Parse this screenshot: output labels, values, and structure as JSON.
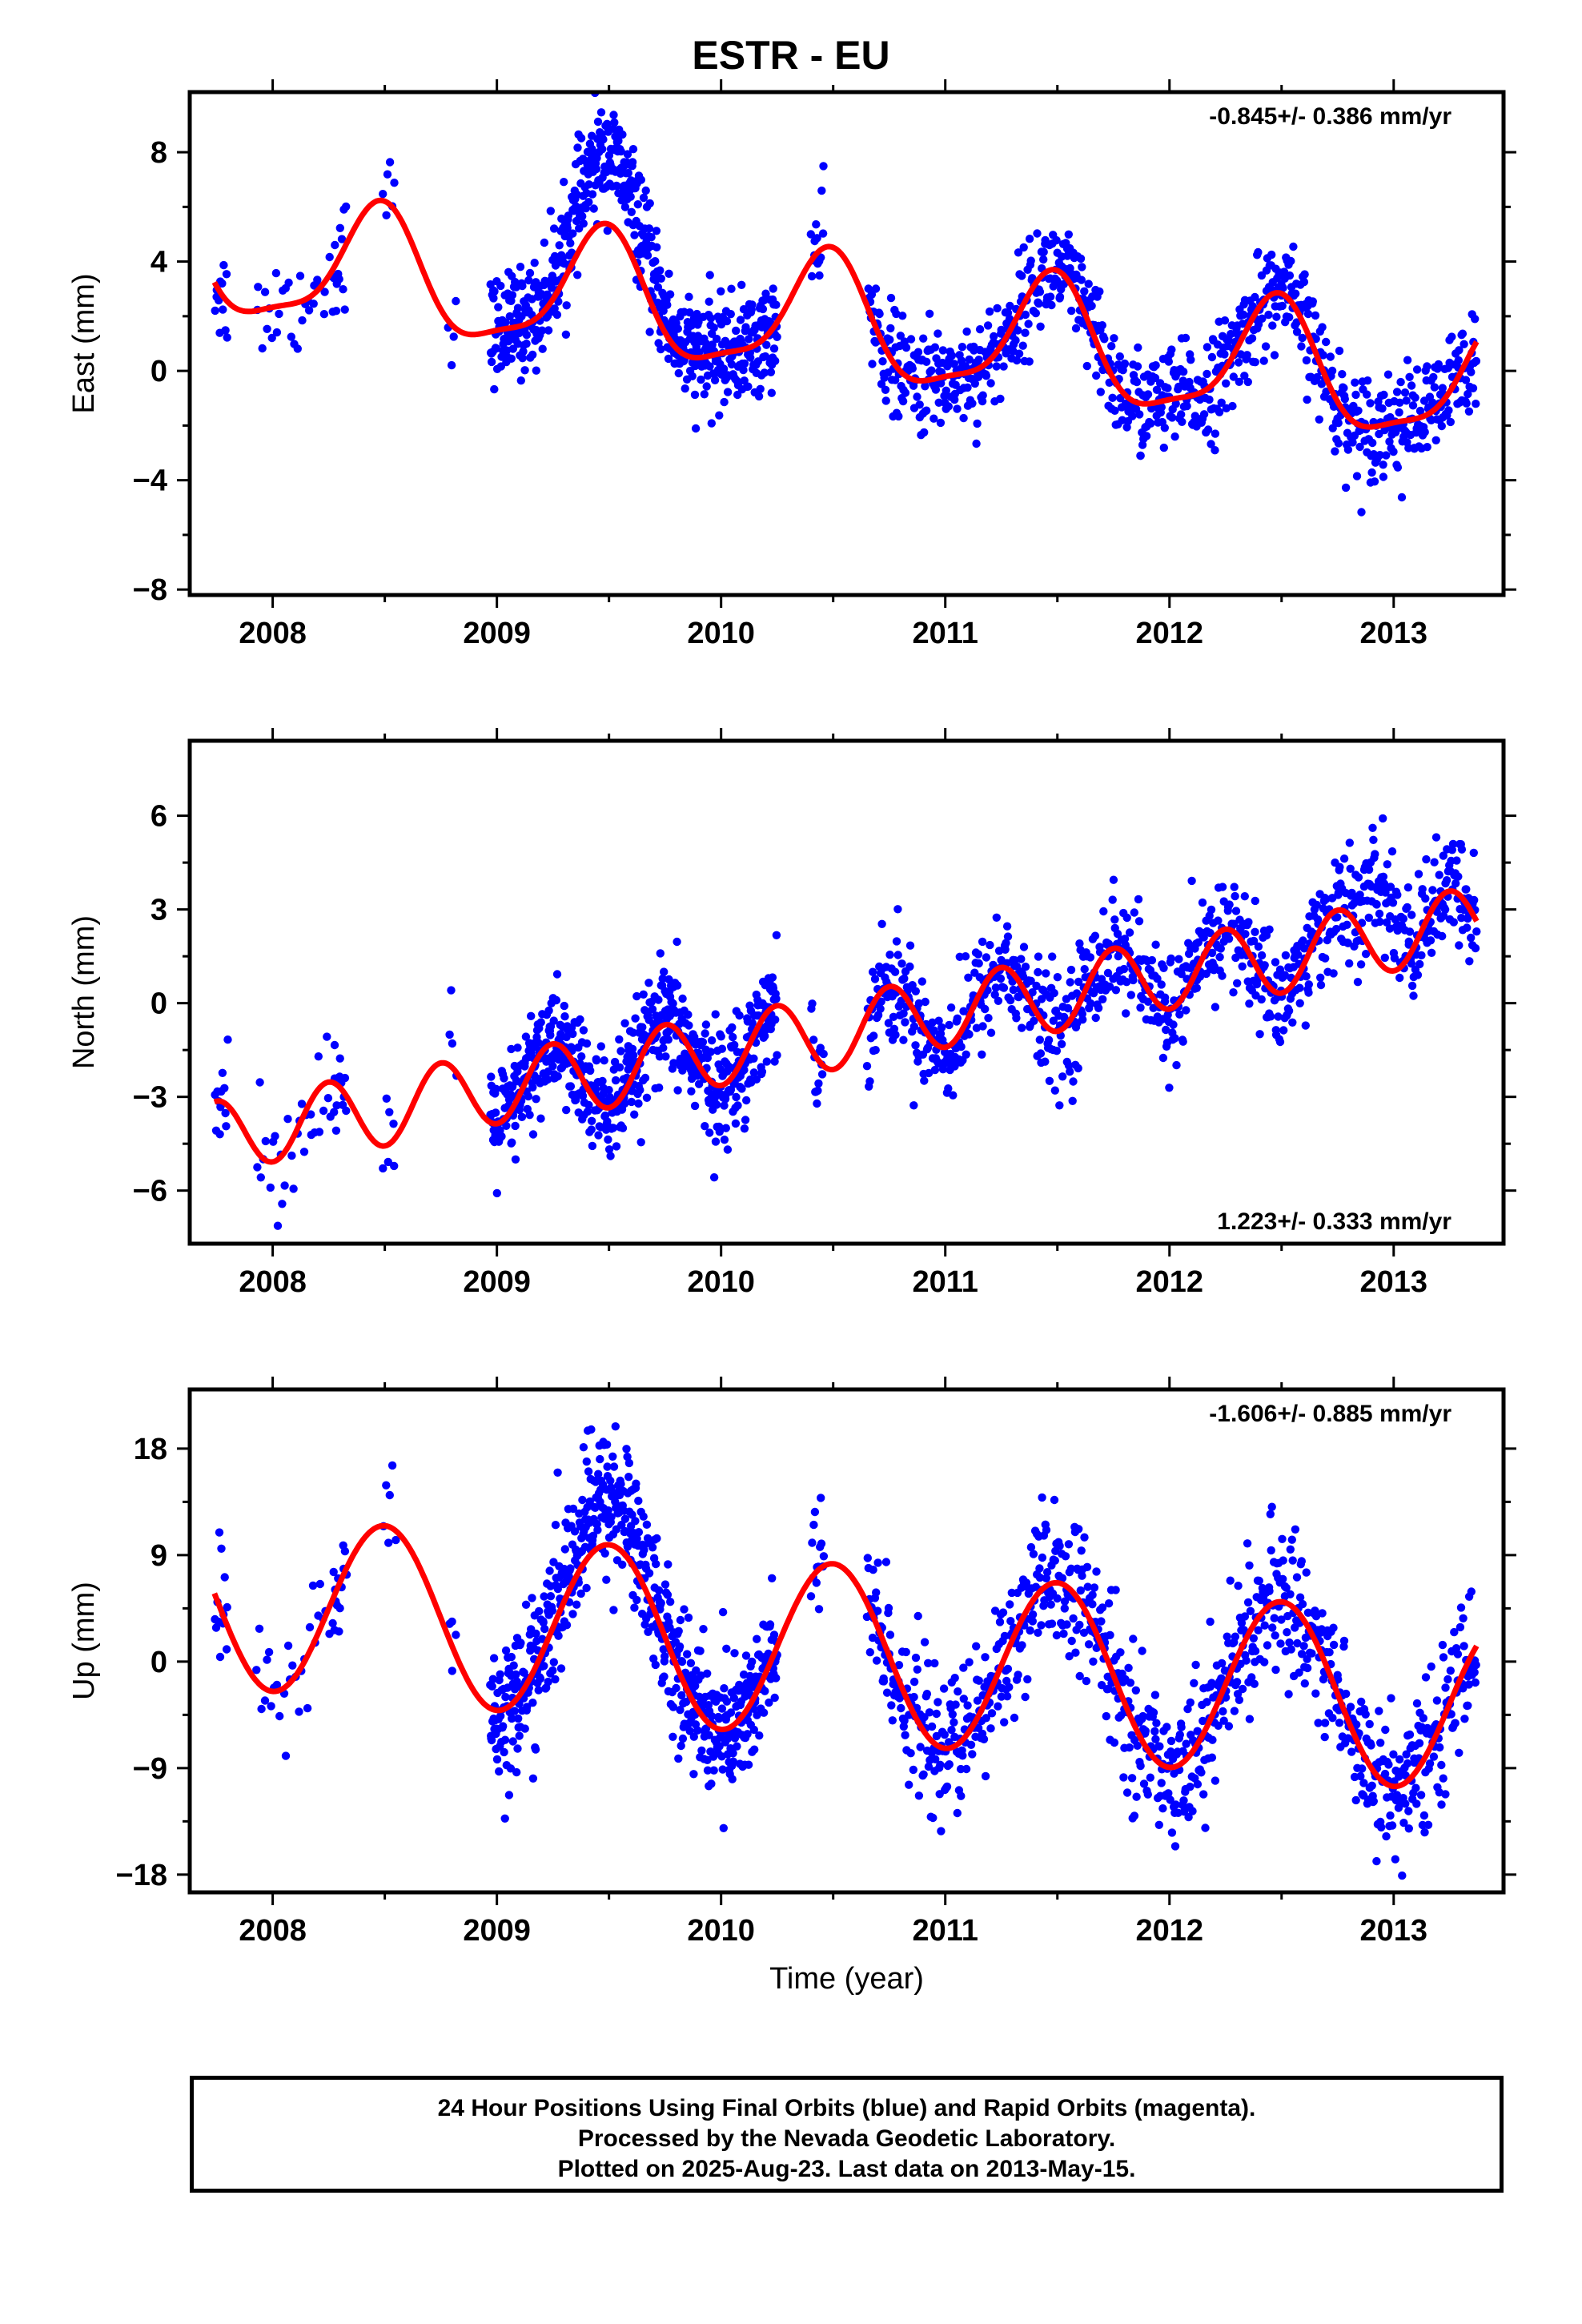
{
  "title": "ESTR - EU",
  "footer": {
    "line1": "24 Hour Positions Using Final Orbits (blue) and Rapid Orbits (magenta).",
    "line2": "Processed by the Nevada Geodetic Laboratory.",
    "line3": "Plotted on 2025-Aug-23. Last data on 2013-May-15."
  },
  "colors": {
    "points": "#0000ff",
    "fit": "#ff0000",
    "frame": "#000000"
  },
  "chart_data": [
    {
      "type": "scatter",
      "name": "east",
      "ylabel": "East (mm)",
      "xlabel": "",
      "rate_label": "-0.845+/- 0.386 mm/yr",
      "rate_placement": "top-right",
      "xlim": [
        2007.63,
        2013.49
      ],
      "ylim": [
        -8.2,
        10.2
      ],
      "xticks": [
        "2008",
        "2009",
        "2010",
        "2011",
        "2012",
        "2013"
      ],
      "yticks": [
        "8",
        "4",
        "0",
        "−4",
        "−8"
      ],
      "ytick_values": [
        8,
        4,
        0,
        -4,
        -8
      ],
      "data_range": [
        2007.74,
        2013.37
      ],
      "fit": {
        "offset": 4.1,
        "rate": -0.845,
        "annual_sin": 0.4,
        "annual_cos": -2.15,
        "semiannual_sin": 0.0,
        "semiannual_cos": 0.6
      },
      "anomaly": {
        "center": 2009.5,
        "width": 0.22,
        "amplitude": 2.5
      },
      "scatter_sigma": 0.95,
      "segments": [
        {
          "x": [
            2007.74,
            2007.8
          ],
          "n": 12
        },
        {
          "x": [
            2007.92,
            2008.28
          ],
          "n": 30
        },
        {
          "x": [
            2008.27,
            2008.33
          ],
          "n": 12
        },
        {
          "x": [
            2008.49,
            2008.55
          ],
          "n": 6
        },
        {
          "x": [
            2008.78,
            2008.82
          ],
          "n": 4
        },
        {
          "x": [
            2008.97,
            2010.25
          ],
          "n": 640
        },
        {
          "x": [
            2010.4,
            2010.46
          ],
          "n": 14
        },
        {
          "x": [
            2010.65,
            2013.37
          ],
          "n": 900
        }
      ]
    },
    {
      "type": "scatter",
      "name": "north",
      "ylabel": "North (mm)",
      "xlabel": "",
      "rate_label": "1.223+/- 0.333 mm/yr",
      "rate_placement": "bottom-right",
      "xlim": [
        2007.63,
        2013.49
      ],
      "ylim": [
        -7.7,
        8.4
      ],
      "xticks": [
        "2008",
        "2009",
        "2010",
        "2011",
        "2012",
        "2013"
      ],
      "yticks": [
        "6",
        "3",
        "0",
        "−3",
        "−6"
      ],
      "ytick_values": [
        6,
        3,
        0,
        -3,
        -6
      ],
      "data_range": [
        2007.74,
        2013.37
      ],
      "fit": {
        "offset": -4.3,
        "rate": 1.223,
        "annual_sin": 0.0,
        "annual_cos": 0.05,
        "semiannual_sin": 0.0,
        "semiannual_cos": -1.15
      },
      "anomaly": {
        "center": 2012.95,
        "width": 0.08,
        "amplitude": 2.6
      },
      "scatter_sigma": 0.9,
      "segments": [
        {
          "x": [
            2007.74,
            2007.8
          ],
          "n": 12
        },
        {
          "x": [
            2007.92,
            2008.28
          ],
          "n": 30
        },
        {
          "x": [
            2008.27,
            2008.33
          ],
          "n": 12
        },
        {
          "x": [
            2008.49,
            2008.55
          ],
          "n": 6
        },
        {
          "x": [
            2008.78,
            2008.82
          ],
          "n": 4
        },
        {
          "x": [
            2008.97,
            2010.25
          ],
          "n": 640
        },
        {
          "x": [
            2010.4,
            2010.46
          ],
          "n": 14
        },
        {
          "x": [
            2010.65,
            2013.37
          ],
          "n": 900
        }
      ]
    },
    {
      "type": "scatter",
      "name": "up",
      "ylabel": "Up (mm)",
      "xlabel": "Time (year)",
      "rate_label": "-1.606+/- 0.885 mm/yr",
      "rate_placement": "top-right",
      "xlim": [
        2007.63,
        2013.49
      ],
      "ylim": [
        -19.5,
        23.0
      ],
      "xticks": [
        "2008",
        "2009",
        "2010",
        "2011",
        "2012",
        "2013"
      ],
      "yticks": [
        "18",
        "9",
        "0",
        "−9",
        "−18"
      ],
      "ytick_values": [
        18,
        9,
        0,
        -9,
        -18
      ],
      "data_range": [
        2007.74,
        2013.37
      ],
      "fit": {
        "offset": 5.3,
        "rate": -1.606,
        "annual_sin": 0.0,
        "annual_cos": -7.4,
        "semiannual_sin": 0.0,
        "semiannual_cos": 0.0
      },
      "anomaly": {
        "center": 2009.5,
        "width": 0.18,
        "amplitude": 4.0
      },
      "scatter_sigma": 3.0,
      "segments": [
        {
          "x": [
            2007.74,
            2007.8
          ],
          "n": 12
        },
        {
          "x": [
            2007.92,
            2008.28
          ],
          "n": 30
        },
        {
          "x": [
            2008.27,
            2008.33
          ],
          "n": 12
        },
        {
          "x": [
            2008.49,
            2008.55
          ],
          "n": 6
        },
        {
          "x": [
            2008.78,
            2008.82
          ],
          "n": 4
        },
        {
          "x": [
            2008.97,
            2010.25
          ],
          "n": 640
        },
        {
          "x": [
            2010.4,
            2010.46
          ],
          "n": 14
        },
        {
          "x": [
            2010.65,
            2013.37
          ],
          "n": 900
        }
      ]
    }
  ]
}
